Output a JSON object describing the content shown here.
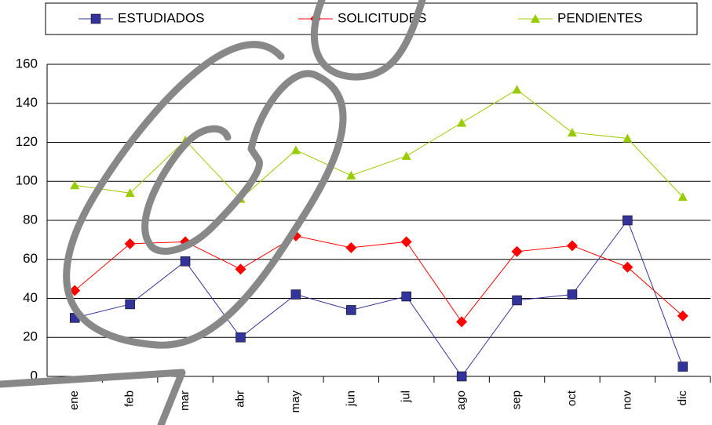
{
  "chart_data": {
    "type": "line",
    "categories": [
      "ene",
      "feb",
      "mar",
      "abr",
      "may",
      "jun",
      "jul",
      "ago",
      "sep",
      "oct",
      "nov",
      "dic"
    ],
    "series": [
      {
        "name": "ESTUDIADOS",
        "color": "#333399",
        "marker": "square",
        "values": [
          30,
          37,
          59,
          20,
          42,
          34,
          41,
          0,
          39,
          42,
          80,
          5
        ]
      },
      {
        "name": "SOLICITUDES",
        "color": "#ff0000",
        "marker": "diamond",
        "values": [
          44,
          68,
          69,
          55,
          72,
          66,
          69,
          28,
          64,
          67,
          56,
          31
        ]
      },
      {
        "name": "PENDIENTES",
        "color": "#99cc00",
        "marker": "triangle",
        "values": [
          98,
          94,
          121,
          91,
          116,
          103,
          113,
          130,
          147,
          125,
          122,
          92
        ]
      }
    ],
    "ylim": [
      0,
      160
    ],
    "yticks": [
      0,
      20,
      40,
      60,
      80,
      100,
      120,
      140,
      160
    ],
    "grid": true,
    "legend": "top"
  }
}
